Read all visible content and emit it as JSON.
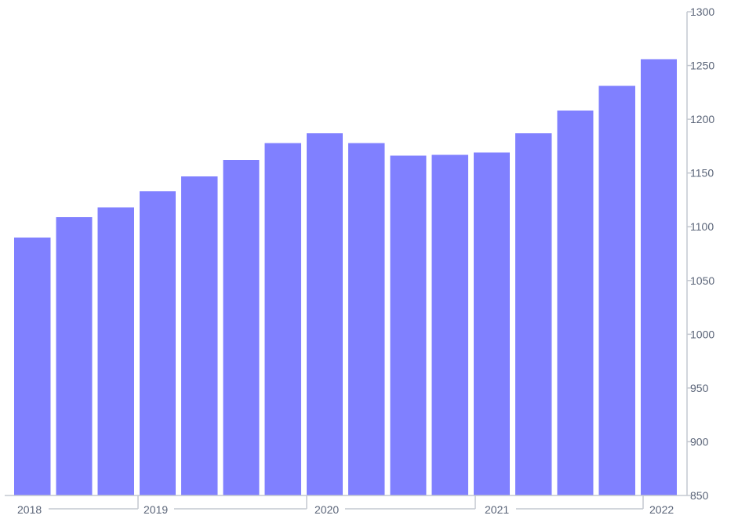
{
  "chart_data": {
    "type": "bar",
    "title": "",
    "xlabel": "",
    "ylabel": "",
    "y_axis_position": "right",
    "ylim": [
      850,
      1300
    ],
    "y_ticks": [
      850,
      900,
      950,
      1000,
      1050,
      1100,
      1150,
      1200,
      1250,
      1300
    ],
    "x_tick_labels": [
      "2018",
      "2019",
      "2020",
      "2021",
      "2022"
    ],
    "bar_color": "#8080ff",
    "grid": false,
    "legend": "none",
    "values": [
      1090,
      1109,
      1118,
      1133,
      1147,
      1162,
      1178,
      1187,
      1178,
      1166,
      1167,
      1169,
      1187,
      1208,
      1231,
      1256
    ]
  }
}
